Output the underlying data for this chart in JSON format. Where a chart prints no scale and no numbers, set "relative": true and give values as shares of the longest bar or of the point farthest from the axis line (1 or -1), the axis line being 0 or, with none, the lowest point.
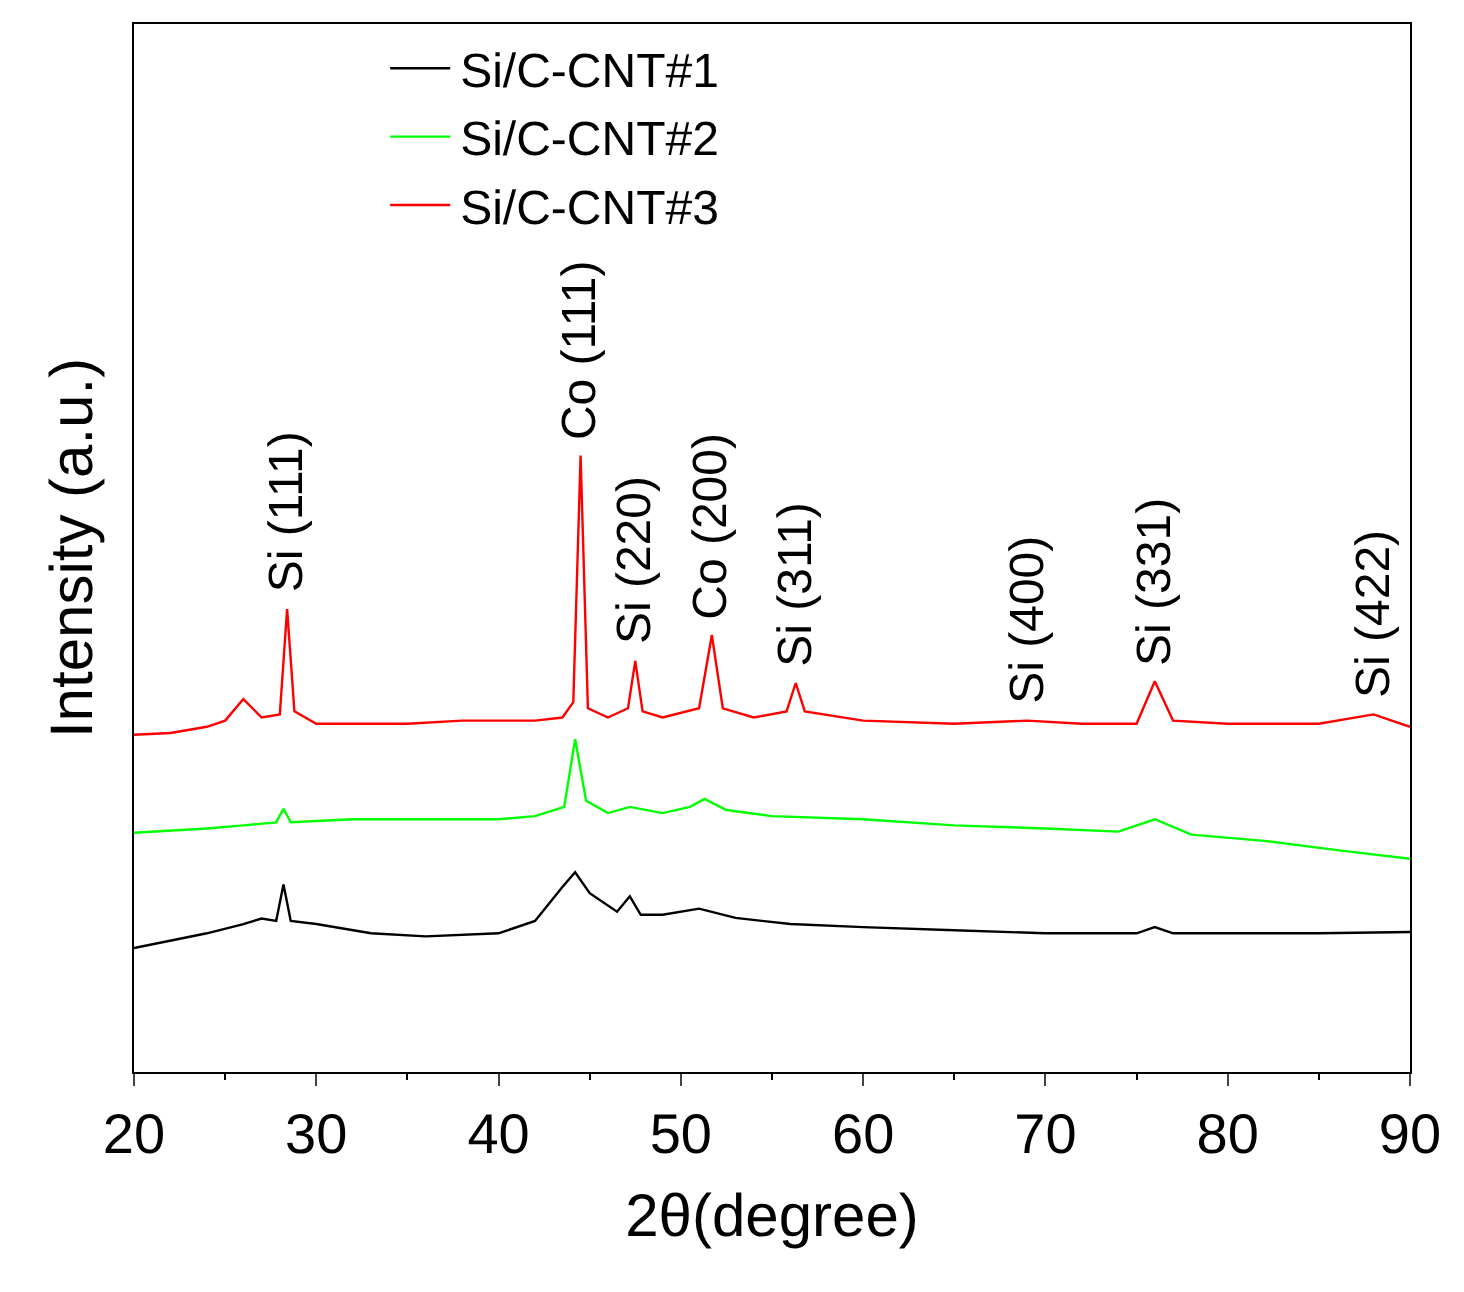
{
  "chart_data": {
    "type": "line",
    "relative": true,
    "xlabel": "2θ(degree)",
    "ylabel": "Intensity (a.u.)",
    "xlim": [
      20,
      90
    ],
    "xticks": [
      20,
      30,
      40,
      50,
      60,
      70,
      80,
      90
    ],
    "legend": "top",
    "series": [
      {
        "name": "Si/C-CNT#1",
        "color": "#000000",
        "x": [
          20,
          24,
          26,
          27,
          27.8,
          28.2,
          28.6,
          30,
          33,
          36,
          40,
          42,
          43.5,
          44.2,
          45,
          46.5,
          47.2,
          47.8,
          49,
          51,
          53,
          56,
          60,
          65,
          70,
          75,
          76,
          77,
          80,
          85,
          90
        ],
        "values": [
          0.201,
          0.225,
          0.24,
          0.249,
          0.245,
          0.304,
          0.245,
          0.24,
          0.225,
          0.22,
          0.225,
          0.245,
          0.3,
          0.324,
          0.29,
          0.26,
          0.285,
          0.255,
          0.255,
          0.265,
          0.25,
          0.24,
          0.235,
          0.23,
          0.225,
          0.225,
          0.235,
          0.225,
          0.225,
          0.225,
          0.227
        ]
      },
      {
        "name": "Si/C-CNT#2",
        "color": "#00ff00",
        "x": [
          20,
          24,
          26,
          27.8,
          28.2,
          28.6,
          32,
          36,
          40,
          42,
          43.6,
          44.2,
          44.8,
          46,
          47.2,
          49,
          50.5,
          51.3,
          52.5,
          55,
          60,
          65,
          70,
          74,
          76,
          78,
          82,
          86,
          90
        ],
        "values": [
          0.388,
          0.395,
          0.4,
          0.405,
          0.427,
          0.405,
          0.41,
          0.41,
          0.41,
          0.415,
          0.43,
          0.54,
          0.44,
          0.42,
          0.43,
          0.42,
          0.43,
          0.443,
          0.425,
          0.415,
          0.41,
          0.4,
          0.395,
          0.39,
          0.41,
          0.385,
          0.375,
          0.36,
          0.346
        ]
      },
      {
        "name": "Si/C-CNT#3",
        "color": "#ff0000",
        "x": [
          20,
          22,
          24,
          25,
          26,
          26.5,
          27,
          28,
          28.4,
          28.8,
          30,
          32,
          35,
          38,
          40,
          42,
          43.5,
          44.1,
          44.5,
          44.9,
          46,
          47.1,
          47.5,
          47.9,
          49,
          51,
          51.7,
          52.3,
          54,
          55.8,
          56.3,
          56.8,
          60,
          65,
          69,
          72,
          75,
          76,
          77,
          80,
          85,
          88,
          90
        ],
        "values": [
          0.547,
          0.55,
          0.56,
          0.57,
          0.605,
          0.59,
          0.575,
          0.58,
          0.751,
          0.585,
          0.565,
          0.565,
          0.565,
          0.57,
          0.57,
          0.57,
          0.575,
          0.6,
          1.0,
          0.59,
          0.575,
          0.59,
          0.667,
          0.585,
          0.575,
          0.59,
          0.709,
          0.59,
          0.575,
          0.585,
          0.631,
          0.585,
          0.57,
          0.565,
          0.57,
          0.565,
          0.565,
          0.634,
          0.57,
          0.565,
          0.565,
          0.58,
          0.56
        ]
      }
    ],
    "annotations": [
      {
        "text": "Si (111)",
        "x": 28.4,
        "y": 0.751
      },
      {
        "text": "Co (111)",
        "x": 44.5,
        "y": 1.0
      },
      {
        "text": "Si (220)",
        "x": 47.5,
        "y": 0.667
      },
      {
        "text": "Co (200)",
        "x": 51.7,
        "y": 0.709
      },
      {
        "text": "Si (311)",
        "x": 56.3,
        "y": 0.631
      },
      {
        "text": "Si (400)",
        "x": 69,
        "y": 0.57
      },
      {
        "text": "Si (331)",
        "x": 76,
        "y": 0.634
      },
      {
        "text": "Si (422)",
        "x": 88,
        "y": 0.58
      }
    ]
  }
}
